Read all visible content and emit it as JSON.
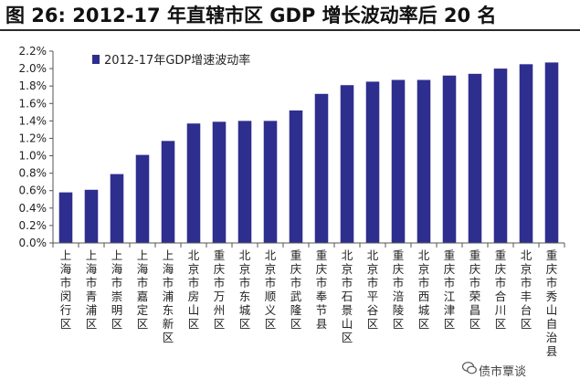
{
  "figure": {
    "title": "图 26:  2012-17 年直辖市区 GDP 增长波动率后 20 名",
    "watermark": "债市覃谈",
    "watermark_icon": "wechat-icon"
  },
  "chart_data": {
    "type": "bar",
    "title": "",
    "legend": {
      "label": "2012-17年GDP增速波动率",
      "placement": "top-left"
    },
    "color": "#2e2e8f",
    "xlabel": "",
    "ylabel": "",
    "ylim": [
      0,
      0.022
    ],
    "yticks": [
      "0.0%",
      "0.2%",
      "0.4%",
      "0.6%",
      "0.8%",
      "1.0%",
      "1.2%",
      "1.4%",
      "1.6%",
      "1.8%",
      "2.0%",
      "2.2%"
    ],
    "categories": [
      "上海市闵行区",
      "上海市青浦区",
      "上海市崇明区",
      "上海市嘉定区",
      "上海市浦东新区",
      "北京市房山区",
      "重庆市万州区",
      "北京市东城区",
      "北京市顺义区",
      "重庆市武隆区",
      "重庆市奉节县",
      "北京市石景山区",
      "北京市平谷区",
      "重庆市涪陵区",
      "北京市西城区",
      "重庆市江津区",
      "重庆市荣昌区",
      "重庆市合川区",
      "北京市丰台区",
      "重庆市秀山自治县"
    ],
    "values": [
      0.0058,
      0.0061,
      0.0079,
      0.0101,
      0.0117,
      0.0137,
      0.0139,
      0.014,
      0.014,
      0.0152,
      0.0171,
      0.0181,
      0.0185,
      0.0187,
      0.0187,
      0.0192,
      0.0194,
      0.02,
      0.0205,
      0.0207
    ]
  }
}
